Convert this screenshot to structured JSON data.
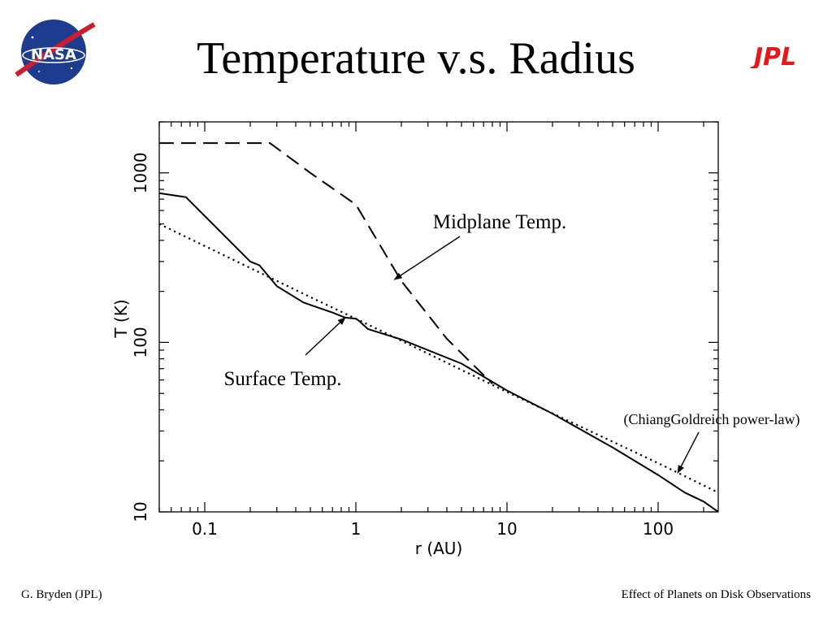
{
  "slide": {
    "title": "Temperature v.s. Radius",
    "footer_left": "G. Bryden (JPL)",
    "footer_right": "Effect of Planets on Disk Observations",
    "nasa_logo_text": "NASA",
    "jpl_logo_text": "JPL"
  },
  "chart_data": {
    "type": "line",
    "xlabel": "r (AU)",
    "ylabel": "T (K)",
    "x_scale": "log",
    "y_scale": "log",
    "xlim": [
      0.05,
      250
    ],
    "ylim": [
      10,
      2000
    ],
    "x_ticks": [
      0.1,
      1,
      10,
      100
    ],
    "x_tick_labels": [
      "0.1",
      "1",
      "10",
      "100"
    ],
    "y_ticks": [
      10,
      100,
      1000
    ],
    "y_tick_labels": [
      "10",
      "100",
      "1000"
    ],
    "grid": false,
    "series": [
      {
        "style": "dashed",
        "x": [
          0.05,
          0.27,
          0.5,
          1.0,
          2.0,
          4.0,
          8.0
        ],
        "y": [
          1500,
          1500,
          1000,
          650,
          230,
          105,
          57
        ]
      },
      {
        "style": "solid",
        "x": [
          0.05,
          0.075,
          0.2,
          0.23,
          0.3,
          0.45,
          0.7,
          0.85,
          1.0,
          1.05,
          1.2,
          2.0,
          5.0,
          10.0,
          20.0,
          50.0,
          100.0,
          150.0,
          200.0,
          250.0
        ],
        "y": [
          760,
          720,
          300,
          285,
          215,
          172,
          150,
          140,
          138,
          134,
          120,
          104,
          75,
          52,
          38,
          24,
          16.5,
          13,
          11.5,
          10
        ]
      },
      {
        "style": "dotted",
        "x": [
          0.05,
          0.5,
          1.0,
          10.0,
          100.0,
          250.0
        ],
        "y": [
          500,
          185,
          138,
          51,
          19.4,
          13
        ]
      }
    ],
    "annotations": [
      {
        "text": "Midplane Temp.",
        "points_to": [
          1.8,
          235
        ]
      },
      {
        "text": "Surface Temp.",
        "points_to": [
          0.85,
          140
        ]
      },
      {
        "text": "(ChiangGoldreich power-law)",
        "points_to": [
          135,
          17
        ]
      }
    ]
  }
}
